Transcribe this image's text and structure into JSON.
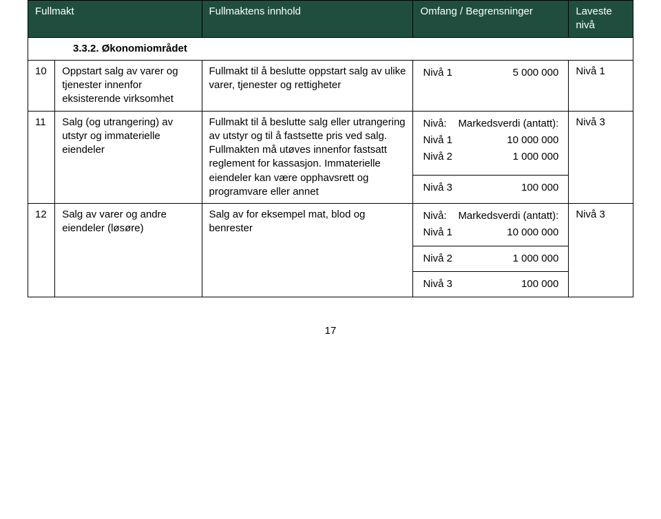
{
  "header": {
    "col1": "Fullmakt",
    "col2": "Fullmaktens innhold",
    "col3": "Omfang / Begrensninger",
    "col4": "Laveste nivå"
  },
  "section": {
    "number": "3.3.2.",
    "title": "Økonomiområdet"
  },
  "row10": {
    "num": "10",
    "desc": "Oppstart salg av varer og tjenester innenfor eksisterende virksomhet",
    "content": "Fullmakt til å beslutte oppstart salg av ulike varer, tjenester og rettigheter",
    "scope_level_label": "Nivå 1",
    "scope_level_amount": "5 000 000",
    "lowest": "Nivå 1"
  },
  "row11": {
    "num": "11",
    "desc": "Salg (og utrangering) av utstyr og immaterielle eiendeler",
    "content": "Fullmakt til å beslutte salg eller utrangering av utstyr og til å fastsette pris ved salg. Fullmakten må utøves innenfor fastsatt reglement for kassasjon. Immaterielle eiendeler kan være opphavsrett og programvare eller annet",
    "scope": {
      "r0_l": "Nivå:",
      "r0_v": "Markedsverdi (antatt):",
      "r1_l": "Nivå 1",
      "r1_v": "10 000 000",
      "r2_l": "Nivå 2",
      "r2_v": "1 000 000",
      "r3_l": "Nivå 3",
      "r3_v": "100 000"
    },
    "lowest": "Nivå 3"
  },
  "row12": {
    "num": "12",
    "desc": "Salg av varer og andre eiendeler (løsøre)",
    "content": "Salg av for eksempel mat, blod og benrester",
    "scope": {
      "r0_l": "Nivå:",
      "r0_v": "Markedsverdi (antatt):",
      "r1_l": "Nivå 1",
      "r1_v": "10 000 000",
      "r2_l": "Nivå 2",
      "r2_v": "1 000 000",
      "r3_l": "Nivå 3",
      "r3_v": "100 000"
    },
    "lowest": "Nivå 3"
  },
  "page_number": "17"
}
